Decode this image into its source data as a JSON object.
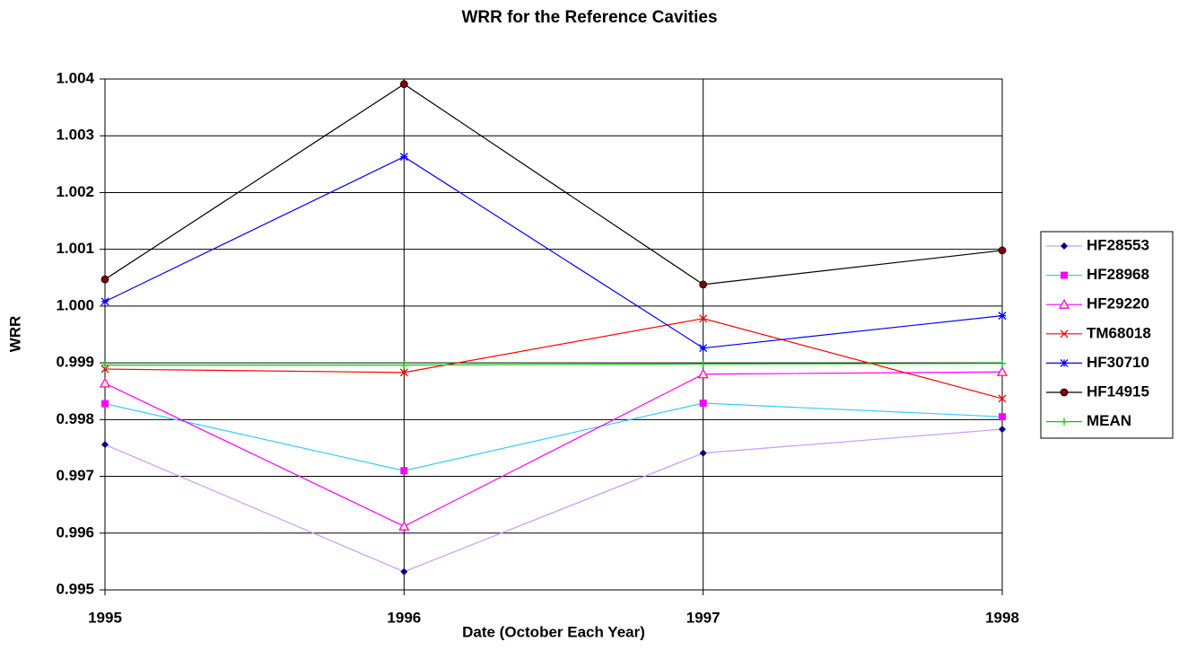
{
  "chart_data": {
    "type": "line",
    "title": "WRR for the Reference Cavities",
    "x_label": "Date (October Each Year)",
    "y_label": "WRR",
    "x": [
      1995,
      1996,
      1997,
      1998
    ],
    "xlim": [
      1995,
      1998
    ],
    "xticks": [
      1995,
      1996,
      1997,
      1998
    ],
    "ylim": [
      0.995,
      1.004
    ],
    "yticks": [
      0.995,
      0.996,
      0.997,
      0.998,
      0.999,
      {
        "value": 1,
        "label": "1.000"
      },
      1.001,
      1.002,
      1.003,
      1.004
    ],
    "grid": true,
    "legend": "right",
    "series": [
      {
        "name": "HF28553",
        "color": "#cc99ff",
        "marker": "diamond",
        "marker_color": "#000080",
        "values": [
          0.99756,
          0.99532,
          0.99741,
          0.99783
        ]
      },
      {
        "name": "HF28968",
        "color": "#33ccff",
        "marker": "square",
        "marker_color": "#ff00ff",
        "values": [
          0.99828,
          0.9971,
          0.99829,
          0.99805
        ]
      },
      {
        "name": "HF29220",
        "color": "#ff00ff",
        "marker": "triangle",
        "marker_color": "#ff00ff",
        "values": [
          0.99864,
          0.99612,
          0.9988,
          0.99884
        ]
      },
      {
        "name": "TM68018",
        "color": "#ff0000",
        "marker": "x",
        "marker_color": "#ff0000",
        "values": [
          0.99889,
          0.99883,
          0.99978,
          0.99837
        ]
      },
      {
        "name": "HF30710",
        "color": "#0000ff",
        "marker": "star",
        "marker_color": "#0000ff",
        "values": [
          1.00008,
          1.00263,
          0.99926,
          0.99983
        ]
      },
      {
        "name": "HF14915",
        "color": "#000000",
        "marker": "circle",
        "marker_color": "#800000",
        "values": [
          1.00047,
          1.00391,
          1.00038,
          1.00098
        ]
      },
      {
        "name": "MEAN",
        "color": "#00cc00",
        "marker": "plus",
        "marker_color": "#00cc00",
        "values": [
          0.99896,
          0.99896,
          0.99898,
          0.99899
        ]
      }
    ]
  }
}
